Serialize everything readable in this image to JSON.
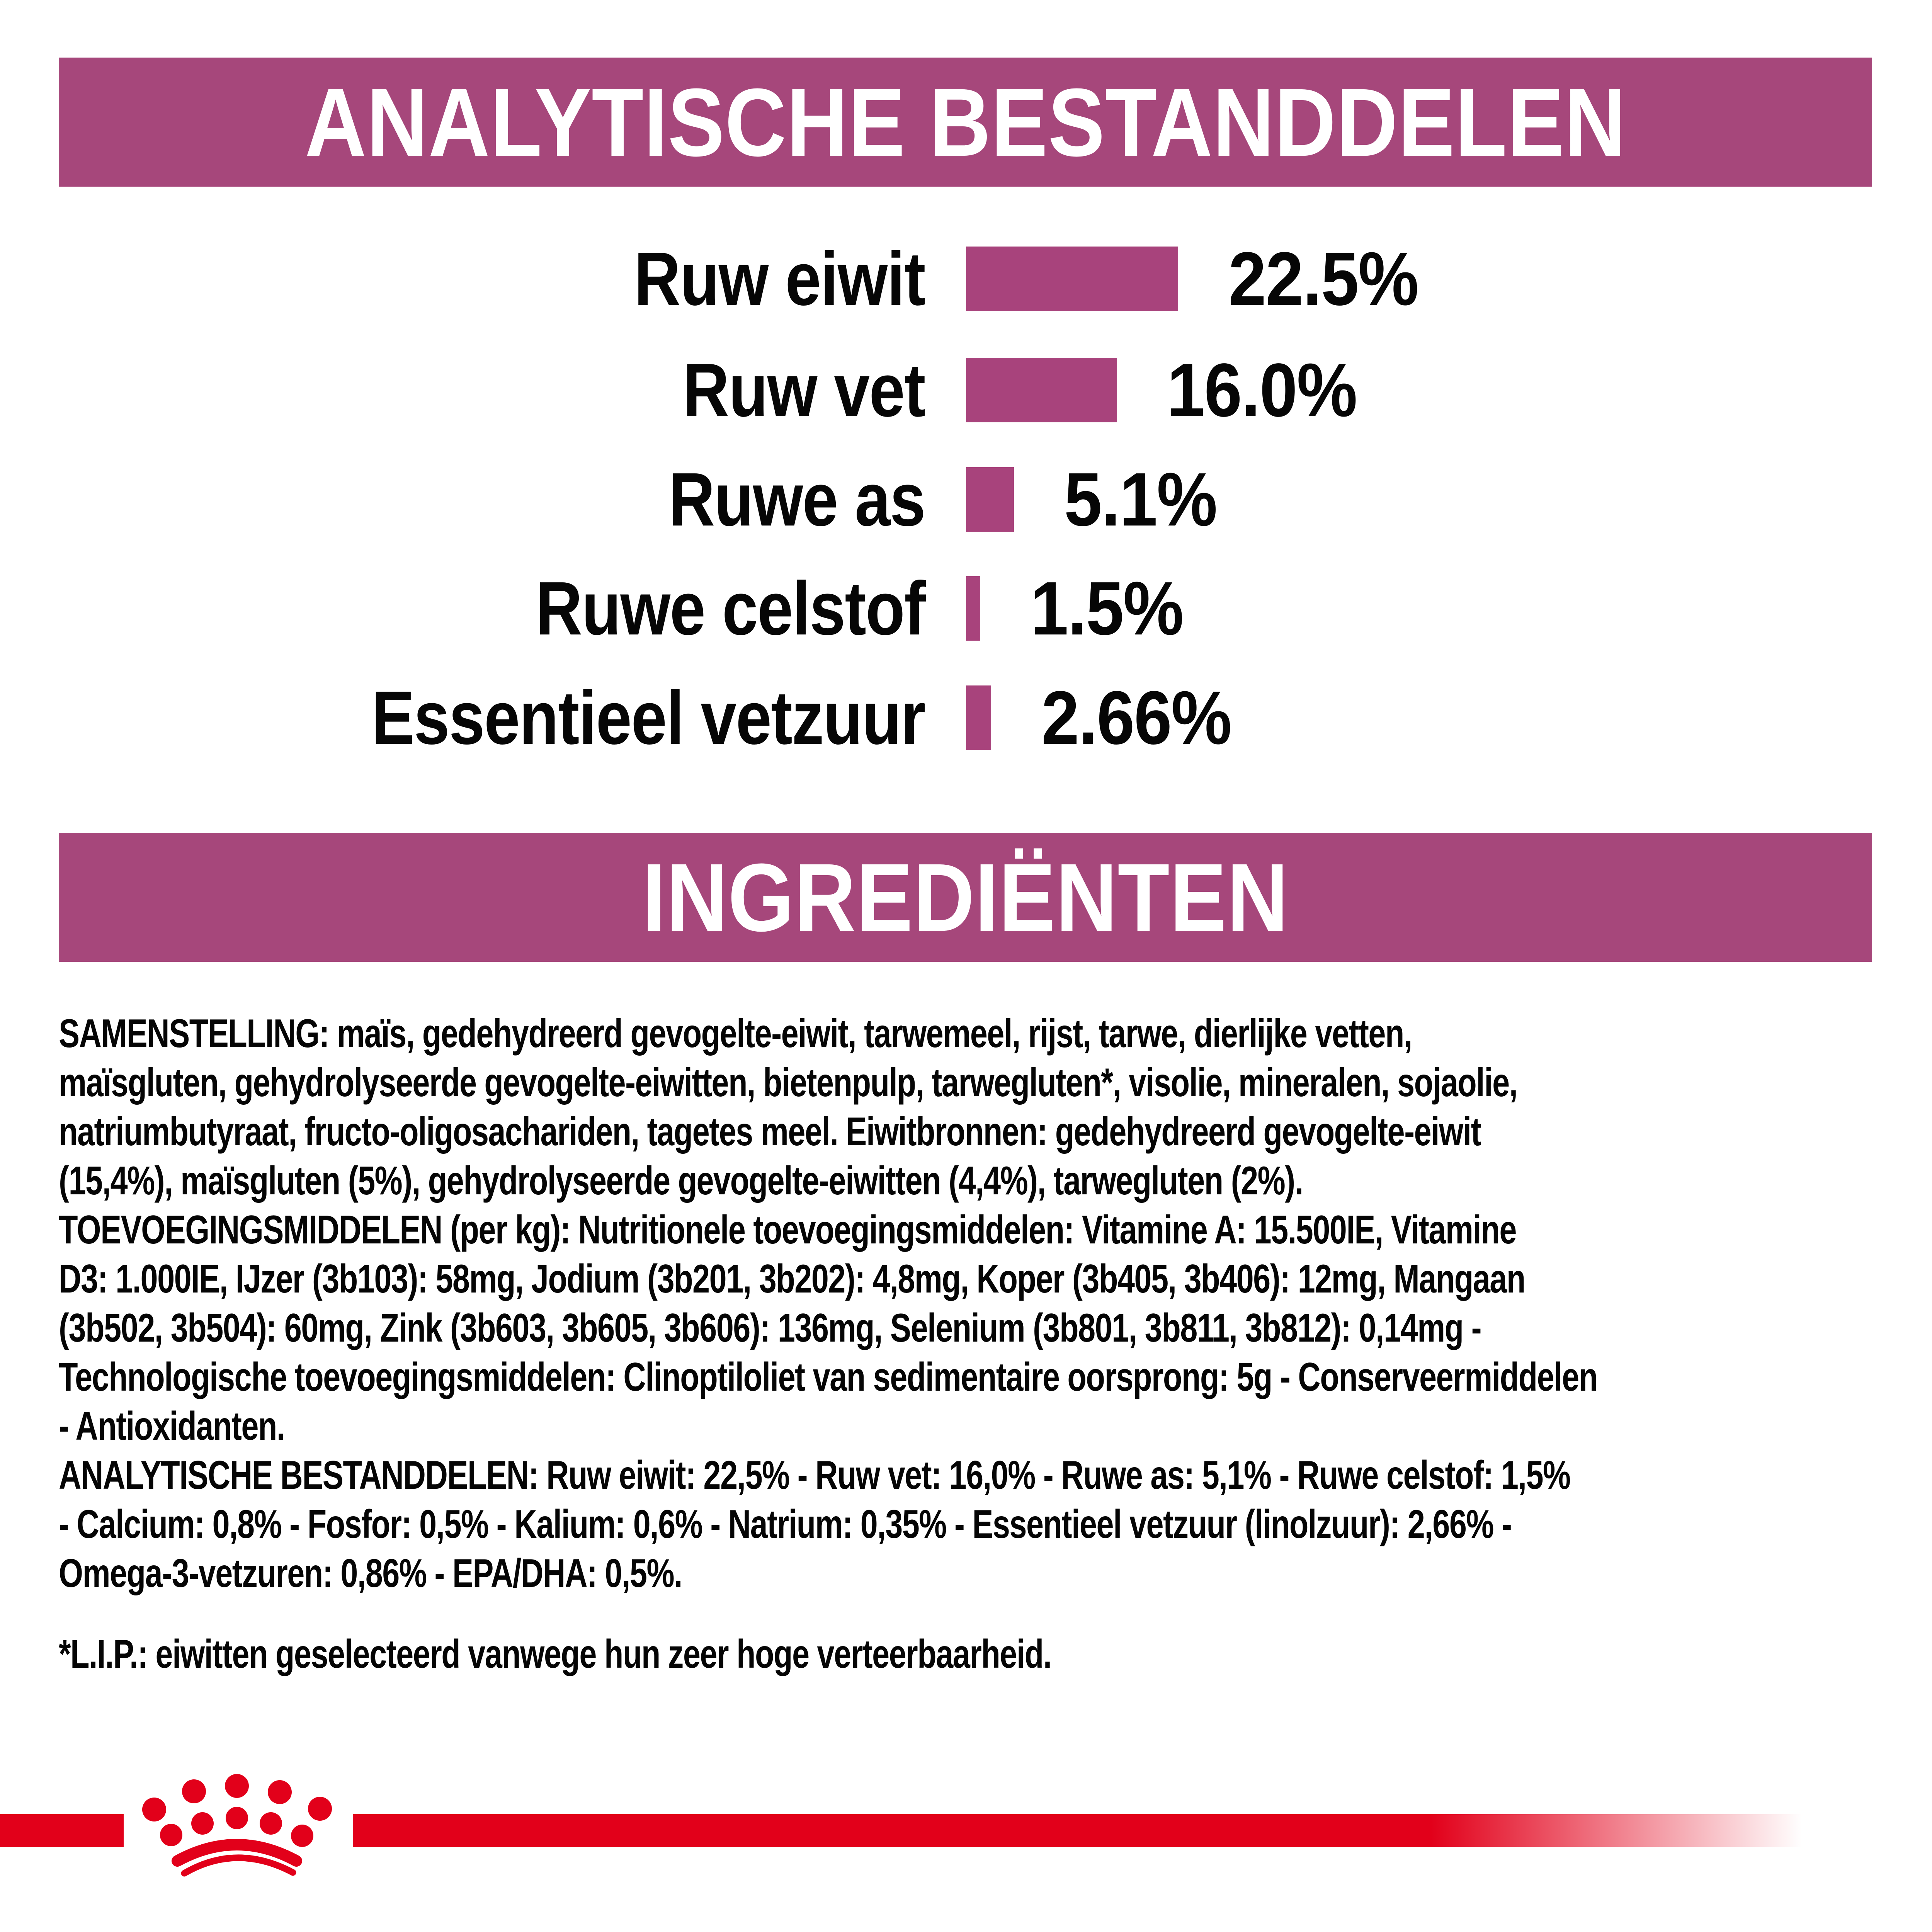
{
  "colors": {
    "banner_purple": "#A6477B",
    "bar_purple": "#A8437C",
    "text_black": "#050505",
    "brand_red": "#E2001A",
    "title_white": "#FFFFFF"
  },
  "header_analytic": {
    "title": "ANALYTISCHE BESTANDDELEN"
  },
  "chart_data": {
    "type": "bar",
    "orientation": "horizontal",
    "title": "ANALYTISCHE BESTANDDELEN",
    "categories": [
      "Ruw eiwit",
      "Ruw vet",
      "Ruwe as",
      "Ruwe celstof",
      "Essentieel vetzuur"
    ],
    "values": [
      22.5,
      16.0,
      5.1,
      1.5,
      2.66
    ],
    "value_labels": [
      "22.5%",
      "16.0%",
      "5.1%",
      "1.5%",
      "2.66%"
    ],
    "unit": "%",
    "xlim": [
      0,
      25
    ],
    "bar_color": "#A8437C",
    "grid": false,
    "legend": false
  },
  "header_ingredients": {
    "title": "INGREDIËNTEN"
  },
  "body": {
    "lines": [
      "SAMENSTELLING: maïs, gedehydreerd gevogelte-eiwit, tarwemeel, rijst, tarwe, dierlijke vetten,",
      "maïsgluten, gehydrolyseerde gevogelte-eiwitten, bietenpulp, tarwegluten*, visolie, mineralen, sojaolie,",
      "natriumbutyraat, fructo-oligosachariden, tagetes meel. Eiwitbronnen: gedehydreerd gevogelte-eiwit",
      "(15,4%), maïsgluten (5%), gehydrolyseerde gevogelte-eiwitten (4,4%), tarwegluten (2%).",
      "TOEVOEGINGSMIDDELEN (per kg): Nutritionele toevoegingsmiddelen: Vitamine A: 15.500IE, Vitamine",
      "D3: 1.000IE, IJzer (3b103): 58mg, Jodium (3b201, 3b202): 4,8mg, Koper (3b405, 3b406): 12mg, Mangaan",
      "(3b502, 3b504): 60mg, Zink (3b603, 3b605, 3b606): 136mg, Selenium (3b801, 3b811, 3b812): 0,14mg -",
      "Technologische toevoegingsmiddelen: Clinoptiloliet van sedimentaire oorsprong: 5g - Conserveermiddelen",
      "- Antioxidanten.",
      "ANALYTISCHE BESTANDDELEN: Ruw eiwit: 22,5% - Ruw vet: 16,0% - Ruwe as: 5,1% - Ruwe celstof: 1,5%",
      "- Calcium: 0,8% - Fosfor: 0,5% - Kalium: 0,6% - Natrium: 0,35% - Essentieel vetzuur (linolzuur): 2,66% -",
      "Omega-3-vetzuren: 0,86% - EPA/DHA: 0,5%."
    ]
  },
  "footnote": "*L.I.P.: eiwitten geselecteerd vanwege hun zeer hoge verteerbaarheid.",
  "logo": {
    "name": "royal-canin-crown",
    "color": "#E2001A"
  }
}
